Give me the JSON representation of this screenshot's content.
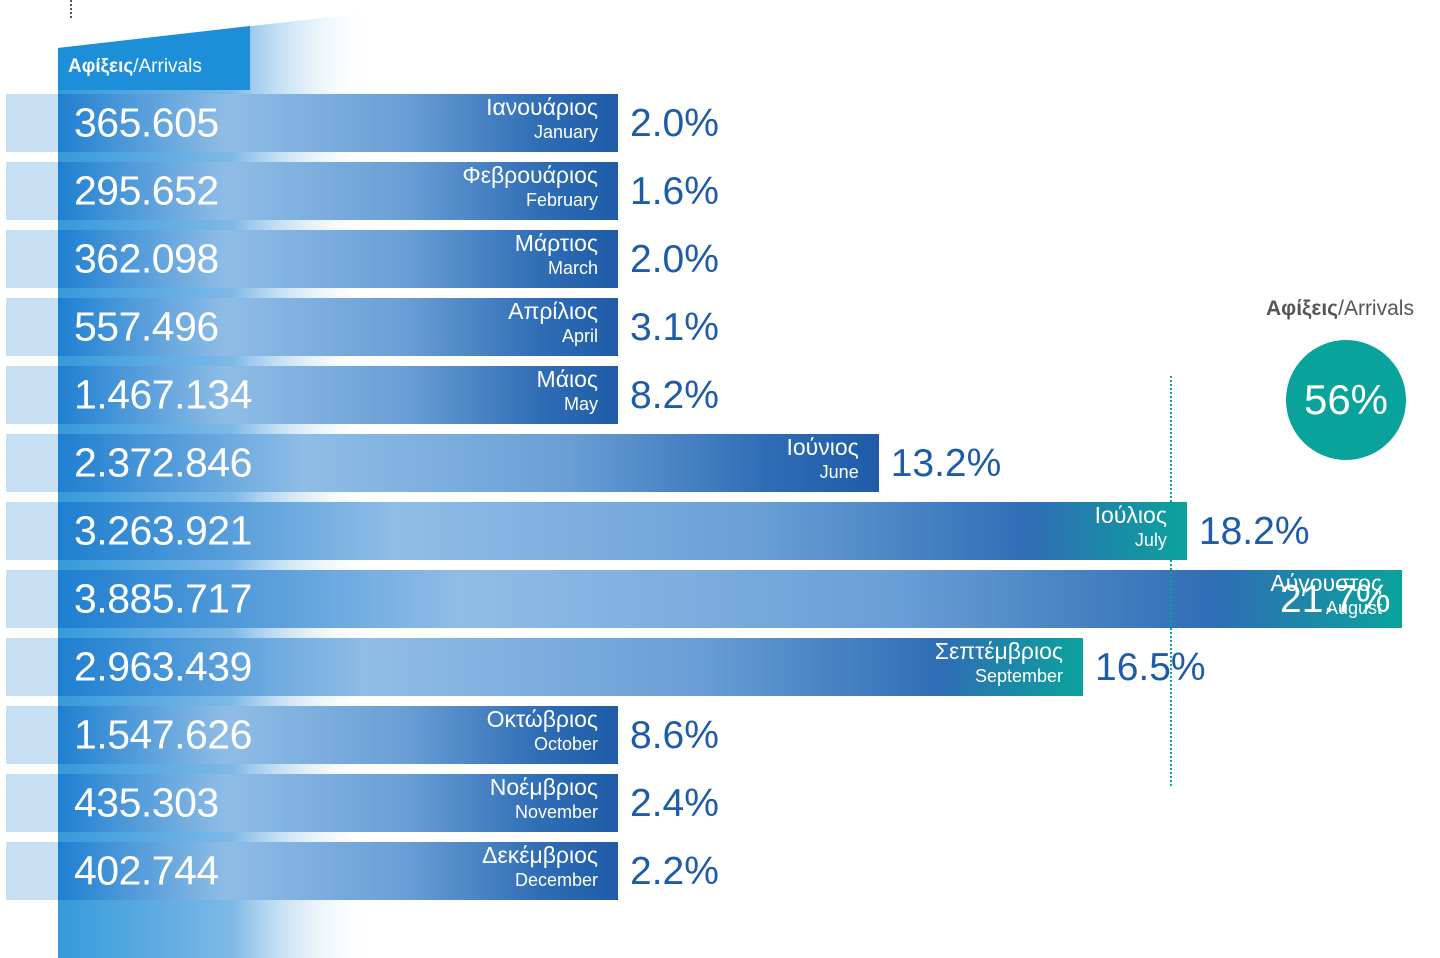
{
  "header": {
    "title_bold": "Αφίξεις",
    "title_rest": "/Arrivals"
  },
  "summary": {
    "title_bold": "Αφίξεις",
    "title_rest": "/Arrivals",
    "share": "56%"
  },
  "colors": {
    "dark_blue": "#1f5ca8",
    "light_blue": "#9cc5ea",
    "teal": "#0aa39c",
    "stub": "#c6dff2"
  },
  "chart_data": {
    "type": "bar",
    "orientation": "horizontal",
    "categories": [
      "Ιανουάριος",
      "Φεβρουάριος",
      "Μάρτιος",
      "Απρίλιος",
      "Μάιος",
      "Ιούνιος",
      "Ιούλιος",
      "Αύγουστος",
      "Σεπτέμβριος",
      "Οκτώβριος",
      "Νοέμβριος",
      "Δεκέμβριος"
    ],
    "categories_en": [
      "January",
      "February",
      "March",
      "April",
      "May",
      "June",
      "July",
      "August",
      "September",
      "October",
      "November",
      "December"
    ],
    "values": [
      365605,
      295652,
      362098,
      557496,
      1467134,
      2372846,
      3263921,
      3885717,
      2963439,
      1547626,
      435303,
      402744
    ],
    "value_labels": [
      "365.605",
      "295.652",
      "362.098",
      "557.496",
      "1.467.134",
      "2.372.846",
      "3.263.921",
      "3.885.717",
      "2.963.439",
      "1.547.626",
      "435.303",
      "402.744"
    ],
    "percent_labels": [
      "2.0%",
      "1.6%",
      "2.0%",
      "3.1%",
      "8.2%",
      "13.2%",
      "18.2%",
      "21.7%",
      "16.5%",
      "8.6%",
      "2.4%",
      "2.2%"
    ],
    "highlighted": [
      false,
      false,
      false,
      false,
      false,
      false,
      true,
      true,
      true,
      false,
      false,
      false
    ],
    "title": "",
    "xlabel": "",
    "ylabel": ""
  }
}
